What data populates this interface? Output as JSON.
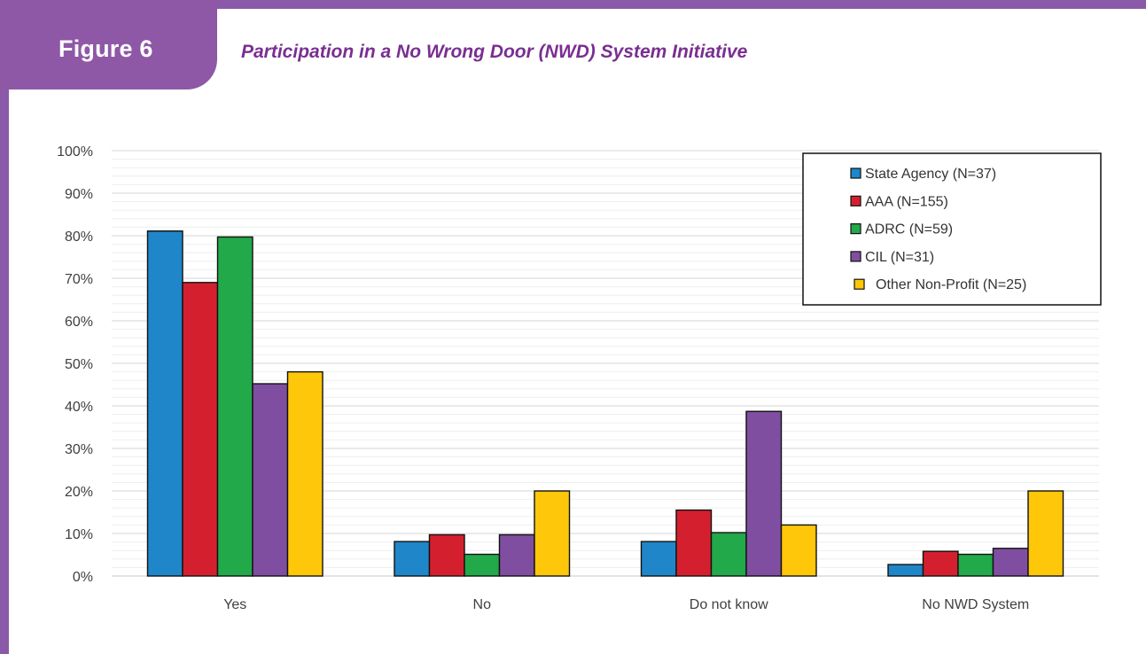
{
  "header": {
    "figure_label": "Figure 6",
    "title": "Participation in a No Wrong Door (NWD) System Initiative"
  },
  "colors": {
    "accent": "#8e58a6",
    "title": "#7a2e91"
  },
  "chart_data": {
    "type": "bar",
    "title": "Participation in a No Wrong Door (NWD) System Initiative",
    "categories": [
      "Yes",
      "No",
      "Do not know",
      "No NWD System"
    ],
    "series": [
      {
        "name": "State Agency (N=37)",
        "color": "#1f86c9",
        "values": [
          81.1,
          8.1,
          8.1,
          2.7
        ]
      },
      {
        "name": "AAA (N=155)",
        "color": "#d4202e",
        "values": [
          69.0,
          9.7,
          15.5,
          5.8
        ]
      },
      {
        "name": "ADRC (N=59)",
        "color": "#22a94a",
        "values": [
          79.7,
          5.1,
          10.2,
          5.1
        ]
      },
      {
        "name": "CIL (N=31)",
        "color": "#804ea1",
        "values": [
          45.2,
          9.7,
          38.7,
          6.5
        ]
      },
      {
        "name": "Other Non-Profit (N=25)",
        "color": "#fec70a",
        "values": [
          48.0,
          20.0,
          12.0,
          20.0
        ]
      }
    ],
    "yticks": [
      "0%",
      "10%",
      "20%",
      "30%",
      "40%",
      "50%",
      "60%",
      "70%",
      "80%",
      "90%",
      "100%"
    ],
    "ylim": [
      0,
      100
    ],
    "xlabel": "",
    "ylabel": "",
    "grid": true,
    "legend": "top-right"
  }
}
